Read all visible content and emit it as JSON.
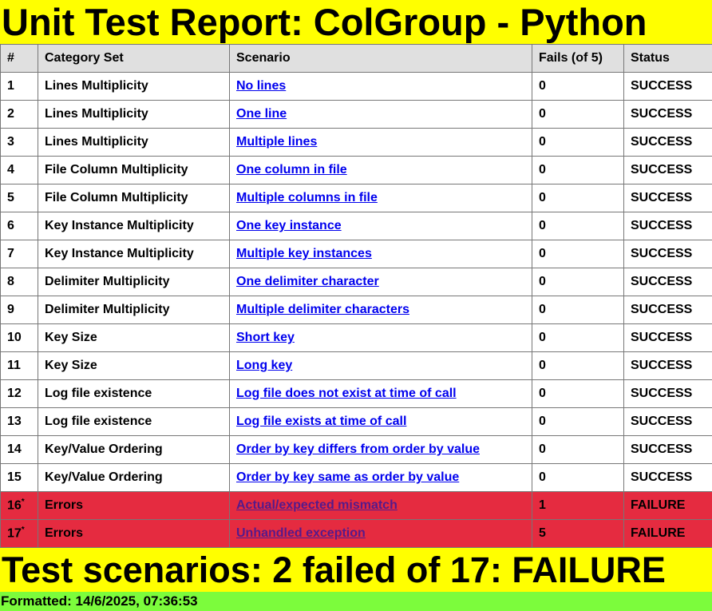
{
  "title": "Unit Test Report: ColGroup - Python",
  "columns": {
    "num": "#",
    "category": "Category Set",
    "scenario": "Scenario",
    "fails": "Fails (of 5)",
    "status": "Status"
  },
  "rows": [
    {
      "num": "1",
      "category": "Lines Multiplicity",
      "scenario": "No lines",
      "fails": "0",
      "status": "SUCCESS"
    },
    {
      "num": "2",
      "category": "Lines Multiplicity",
      "scenario": "One line",
      "fails": "0",
      "status": "SUCCESS"
    },
    {
      "num": "3",
      "category": "Lines Multiplicity",
      "scenario": "Multiple lines",
      "fails": "0",
      "status": "SUCCESS"
    },
    {
      "num": "4",
      "category": "File Column Multiplicity",
      "scenario": "One column in file",
      "fails": "0",
      "status": "SUCCESS"
    },
    {
      "num": "5",
      "category": "File Column Multiplicity",
      "scenario": "Multiple columns in file",
      "fails": "0",
      "status": "SUCCESS"
    },
    {
      "num": "6",
      "category": "Key Instance Multiplicity",
      "scenario": "One key instance",
      "fails": "0",
      "status": "SUCCESS"
    },
    {
      "num": "7",
      "category": "Key Instance Multiplicity",
      "scenario": "Multiple key instances",
      "fails": "0",
      "status": "SUCCESS"
    },
    {
      "num": "8",
      "category": "Delimiter Multiplicity",
      "scenario": "One delimiter character",
      "fails": "0",
      "status": "SUCCESS"
    },
    {
      "num": "9",
      "category": "Delimiter Multiplicity",
      "scenario": "Multiple delimiter characters",
      "fails": "0",
      "status": "SUCCESS"
    },
    {
      "num": "10",
      "category": "Key Size",
      "scenario": "Short key",
      "fails": "0",
      "status": "SUCCESS"
    },
    {
      "num": "11",
      "category": "Key Size",
      "scenario": "Long key",
      "fails": "0",
      "status": "SUCCESS"
    },
    {
      "num": "12",
      "category": "Log file existence",
      "scenario": "Log file does not exist at time of call",
      "fails": "0",
      "status": "SUCCESS"
    },
    {
      "num": "13",
      "category": "Log file existence",
      "scenario": "Log file exists at time of call",
      "fails": "0",
      "status": "SUCCESS"
    },
    {
      "num": "14",
      "category": "Key/Value Ordering",
      "scenario": "Order by key differs from order by value",
      "fails": "0",
      "status": "SUCCESS"
    },
    {
      "num": "15",
      "category": "Key/Value Ordering",
      "scenario": "Order by key same as order by value",
      "fails": "0",
      "status": "SUCCESS"
    },
    {
      "num": "16",
      "mark": "*",
      "category": "Errors",
      "scenario": "Actual/expected mismatch",
      "fails": "1",
      "status": "FAILURE"
    },
    {
      "num": "17",
      "mark": "*",
      "category": "Errors",
      "scenario": "Unhandled exception",
      "fails": "5",
      "status": "FAILURE"
    }
  ],
  "summary": "Test scenarios: 2 failed of 17: FAILURE",
  "footer": "Formatted: 14/6/2025, 07:36:53",
  "colors": {
    "title_bg": "#ffff00",
    "header_bg": "#e0e0e0",
    "failure_bg": "#e52b40",
    "footer_bg": "#7cfc3c",
    "link": "#0000ee",
    "visited_link": "#551a8b"
  }
}
